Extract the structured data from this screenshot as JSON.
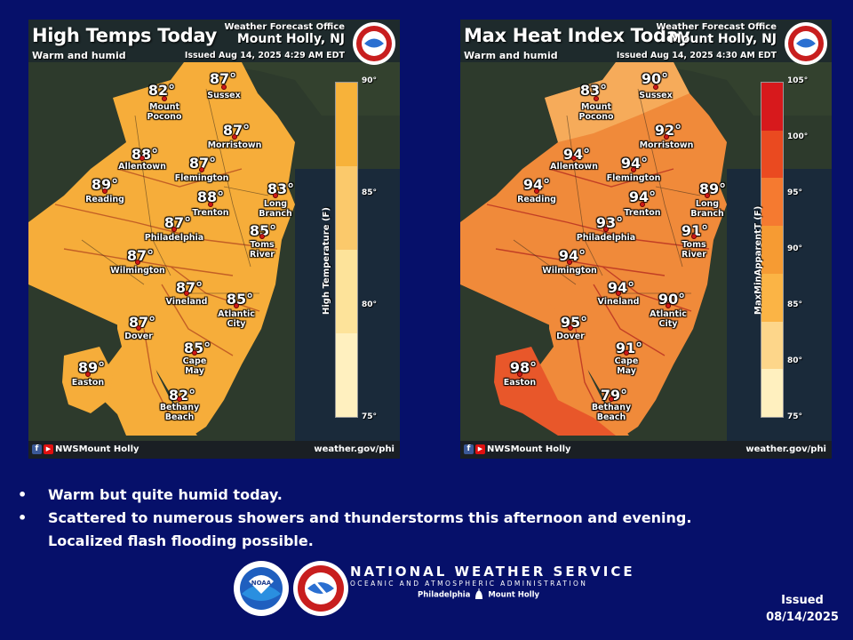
{
  "left_panel": {
    "title": "High Temps Today",
    "subtitle": "Warm and humid",
    "office_line": "Weather Forecast Office",
    "office_city": "Mount Holly, NJ",
    "issued": "Issued Aug 14, 2025 4:29 AM EDT",
    "legend_title": "High Temperature (F)",
    "legend_ticks": [
      "90°",
      "85°",
      "80°",
      "75°"
    ],
    "legend_colors": [
      "#f7b23a",
      "#fbc96b",
      "#fde39a",
      "#fff0bf"
    ],
    "land_color": "#f6ad3a",
    "cities": [
      {
        "name": "Mount\nPocono",
        "temp": "82°"
      },
      {
        "name": "Sussex",
        "temp": "87°"
      },
      {
        "name": "Morristown",
        "temp": "87°"
      },
      {
        "name": "Allentown",
        "temp": "88°"
      },
      {
        "name": "Flemington",
        "temp": "87°"
      },
      {
        "name": "Reading",
        "temp": "89°"
      },
      {
        "name": "Trenton",
        "temp": "88°"
      },
      {
        "name": "Long\nBranch",
        "temp": "83°"
      },
      {
        "name": "Philadelphia",
        "temp": "87°"
      },
      {
        "name": "Toms\nRiver",
        "temp": "85°"
      },
      {
        "name": "Wilmington",
        "temp": "87°"
      },
      {
        "name": "Vineland",
        "temp": "87°"
      },
      {
        "name": "Atlantic\nCity",
        "temp": "85°"
      },
      {
        "name": "Dover",
        "temp": "87°"
      },
      {
        "name": "Cape\nMay",
        "temp": "85°"
      },
      {
        "name": "Easton",
        "temp": "89°"
      },
      {
        "name": "Bethany\nBeach",
        "temp": "82°"
      }
    ]
  },
  "right_panel": {
    "title": "Max Heat Index Today",
    "subtitle": "Warm and humid",
    "office_line": "Weather Forecast Office",
    "office_city": "Mount Holly, NJ",
    "issued": "Issued Aug 14, 2025 4:30 AM EDT",
    "legend_title": "MaxMinApparentT (F)",
    "legend_ticks": [
      "105°",
      "100°",
      "95°",
      "90°",
      "85°",
      "80°",
      "75°"
    ],
    "legend_colors": [
      "#d7191c",
      "#ea4a20",
      "#f57a30",
      "#f69b33",
      "#fbb445",
      "#fdd68a",
      "#fff0bf"
    ],
    "land_color": "#f08a3a",
    "cities": [
      {
        "name": "Mount\nPocono",
        "temp": "83°"
      },
      {
        "name": "Sussex",
        "temp": "90°"
      },
      {
        "name": "Morristown",
        "temp": "92°"
      },
      {
        "name": "Allentown",
        "temp": "94°"
      },
      {
        "name": "Flemington",
        "temp": "94°"
      },
      {
        "name": "Reading",
        "temp": "94°"
      },
      {
        "name": "Trenton",
        "temp": "94°"
      },
      {
        "name": "Long\nBranch",
        "temp": "89°"
      },
      {
        "name": "Philadelphia",
        "temp": "93°"
      },
      {
        "name": "Toms\nRiver",
        "temp": "91°"
      },
      {
        "name": "Wilmington",
        "temp": "94°"
      },
      {
        "name": "Vineland",
        "temp": "94°"
      },
      {
        "name": "Atlantic\nCity",
        "temp": "90°"
      },
      {
        "name": "Dover",
        "temp": "95°"
      },
      {
        "name": "Cape\nMay",
        "temp": "91°"
      },
      {
        "name": "Easton",
        "temp": "98°"
      },
      {
        "name": "Bethany\nBeach",
        "temp": "79°"
      }
    ]
  },
  "footer": {
    "social": "NWSMount Holly",
    "website": "weather.gov/phi"
  },
  "bullets": [
    "Warm but quite humid today.",
    "Scattered to numerous showers and thunderstorms this afternoon and evening.",
    "Localized flash flooding possible."
  ],
  "bullet_char": "•",
  "branding": {
    "name": "NATIONAL WEATHER SERVICE",
    "sub": "OCEANIC AND ATMOSPHERIC ADMINISTRATION",
    "office_left": "Philadelphia",
    "office_right": "Mount Holly",
    "noaa": "NOAA"
  },
  "issued": {
    "label": "Issued",
    "date": "08/14/2025"
  },
  "icons": [
    "noaa-logo-icon",
    "nws-logo-icon",
    "liberty-bell-icon",
    "facebook-icon",
    "youtube-icon"
  ]
}
